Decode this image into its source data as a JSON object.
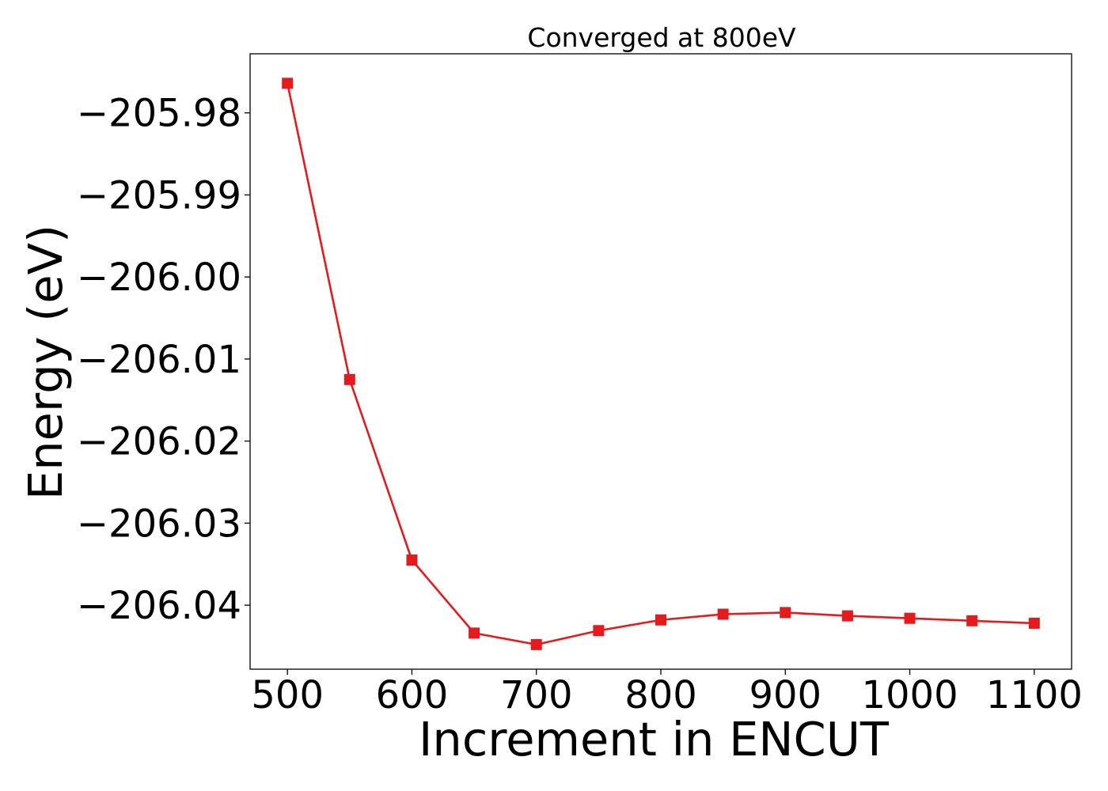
{
  "chart_data": {
    "type": "line",
    "title": "Converged at 800eV",
    "xlabel": "Increment in ENCUT",
    "ylabel": "Energy (eV)",
    "x": [
      500,
      550,
      600,
      650,
      700,
      750,
      800,
      850,
      900,
      950,
      1000,
      1050,
      1100
    ],
    "series": [
      {
        "values": [
          -205.9764,
          -206.0125,
          -206.0345,
          -206.0434,
          -206.0448,
          -206.0431,
          -206.0418,
          -206.0411,
          -206.0409,
          -206.0413,
          -206.0416,
          -206.0419,
          -206.0422
        ],
        "color": "#e41a1c",
        "marker": "square"
      }
    ],
    "xlim": [
      470,
      1130
    ],
    "ylim": [
      -206.0478,
      -205.9728
    ],
    "xticks": [
      500,
      600,
      700,
      800,
      900,
      1000,
      1100
    ],
    "xtick_labels": [
      "500",
      "600",
      "700",
      "800",
      "900",
      "1000",
      "1100"
    ],
    "yticks": [
      -205.98,
      -205.99,
      -206.0,
      -206.01,
      -206.02,
      -206.03,
      -206.04
    ],
    "ytick_labels": [
      "−205.98",
      "−205.99",
      "−206.00",
      "−206.01",
      "−206.02",
      "−206.03",
      "−206.04"
    ],
    "grid": false,
    "legend": "none"
  }
}
